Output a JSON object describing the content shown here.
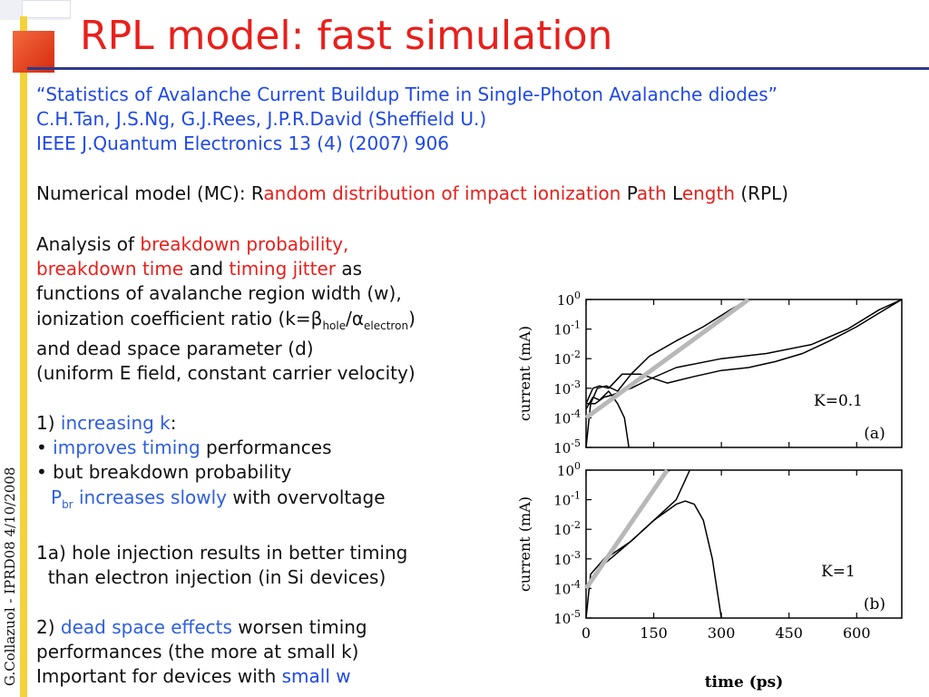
{
  "title": "RPL model: fast simulation",
  "side_text": "G.Collazuol - IPRD08  4/10/2008",
  "ref": {
    "line1": "“Statistics of Avalanche Current Buildup Time in Single-Photon Avalanche diodes”",
    "line2": "C.H.Tan, J.S.Ng, G.J.Rees, J.P.R.David (Sheffield U.)",
    "line3": "IEEE J.Quantum Electronics 13 (4) (2007) 906"
  },
  "model": {
    "a": "Numerical model (MC): R",
    "b": "andom distribution of impact ionization ",
    "c": "P",
    "d": "ath ",
    "e": "L",
    "f": "ength",
    "g": " (RPL)"
  },
  "analysis": {
    "l1a": "Analysis of ",
    "l1b": "breakdown probability,",
    "l2a": "breakdown time",
    "l2b": " and ",
    "l2c": "timing jitter",
    "l2d": " as",
    "l3": "functions of avalanche region width (w),",
    "l4a": " ionization coefficient ratio  (k=β",
    "l4b": "hole",
    "l4c": "/α",
    "l4d": "electron",
    "l4e": ")",
    "l5": "and dead space parameter (d)",
    "l6": "(uniform E field, constant carrier velocity)"
  },
  "p1": {
    "l1a": "1) ",
    "l1b": "increasing k",
    "l1c": ":",
    "l2a": "• ",
    "l2b": "improves timing",
    "l2c": " performances",
    "l3": "• but breakdown probability",
    "l4a": "P",
    "l4b": "br",
    "l4c": " increases slowly",
    "l4d": " with overvoltage"
  },
  "p1a": {
    "l1": "1a) hole injection results in better timing",
    "l2": "  than electron injection (in Si devices)"
  },
  "p2": {
    "l1a": "2) ",
    "l1b": "dead space effects",
    "l1c": " worsen timing",
    "l2": "performances (the more at small k)",
    "l3a": "Important for devices with ",
    "l3b": "small w"
  },
  "chart_data": [
    {
      "type": "line",
      "panel": "(a)",
      "annotation": "K=0.1",
      "ylabel": "current (mA)",
      "y_scale": "log",
      "y_tick_labels": [
        "10^0",
        "10^-1",
        "10^-2",
        "10^-3",
        "10^-4",
        "10^-5"
      ],
      "ylim": [
        1e-05,
        1
      ],
      "xlim": [
        0,
        700
      ],
      "series": [
        {
          "x": [
            0,
            10,
            25,
            45,
            70,
            100,
            140,
            200,
            260,
            320,
            360
          ],
          "y": [
            1e-05,
            0.0003,
            0.001,
            0.0012,
            0.0008,
            0.003,
            0.012,
            0.04,
            0.12,
            0.45,
            1
          ]
        },
        {
          "x": [
            0,
            15,
            30,
            50,
            80,
            120,
            180,
            240,
            300,
            360,
            420,
            480,
            540,
            600,
            650,
            700
          ],
          "y": [
            0.0003,
            0.001,
            0.0012,
            0.001,
            0.003,
            0.003,
            0.0015,
            0.0025,
            0.004,
            0.005,
            0.008,
            0.015,
            0.04,
            0.12,
            0.35,
            1
          ]
        },
        {
          "x": [
            0,
            20,
            40,
            60,
            80,
            100,
            140,
            200,
            300,
            400,
            500,
            580,
            650,
            700
          ],
          "y": [
            0.0003,
            0.0003,
            0.0005,
            0.0006,
            0.0008,
            0.001,
            0.002,
            0.005,
            0.01,
            0.015,
            0.03,
            0.1,
            0.45,
            1
          ]
        },
        {
          "x": [
            0,
            15,
            30,
            50,
            70,
            85,
            95
          ],
          "y": [
            0.0002,
            0.0005,
            0.0004,
            0.0008,
            0.0003,
            0.0001,
            1e-05
          ]
        },
        {
          "x": [
            0,
            360
          ],
          "y": [
            0.0001,
            1
          ]
        }
      ]
    },
    {
      "type": "line",
      "panel": "(b)",
      "annotation": "K=1",
      "ylabel": "current (mA)",
      "xlabel": "time (ps)",
      "y_scale": "log",
      "y_tick_labels": [
        "10^0",
        "10^-1",
        "10^-2",
        "10^-3",
        "10^-4",
        "10^-5"
      ],
      "x_tick_labels": [
        "0",
        "150",
        "300",
        "450",
        "600"
      ],
      "ylim": [
        1e-05,
        1
      ],
      "xlim": [
        0,
        700
      ],
      "series": [
        {
          "x": [
            0,
            10,
            40,
            80,
            120,
            160,
            185
          ],
          "y": [
            1e-05,
            0.0003,
            0.001,
            0.005,
            0.05,
            0.4,
            1
          ]
        },
        {
          "x": [
            0,
            30,
            60,
            100,
            150,
            200,
            220,
            240,
            260,
            280,
            300
          ],
          "y": [
            0.0001,
            0.0005,
            0.0012,
            0.004,
            0.02,
            0.07,
            0.09,
            0.07,
            0.02,
            0.001,
            1e-05
          ]
        },
        {
          "x": [
            0,
            50,
            100,
            150,
            200,
            230
          ],
          "y": [
            0.0001,
            0.0012,
            0.004,
            0.02,
            0.1,
            1
          ]
        },
        {
          "x": [
            0,
            180
          ],
          "y": [
            0.0001,
            1
          ]
        }
      ]
    }
  ]
}
